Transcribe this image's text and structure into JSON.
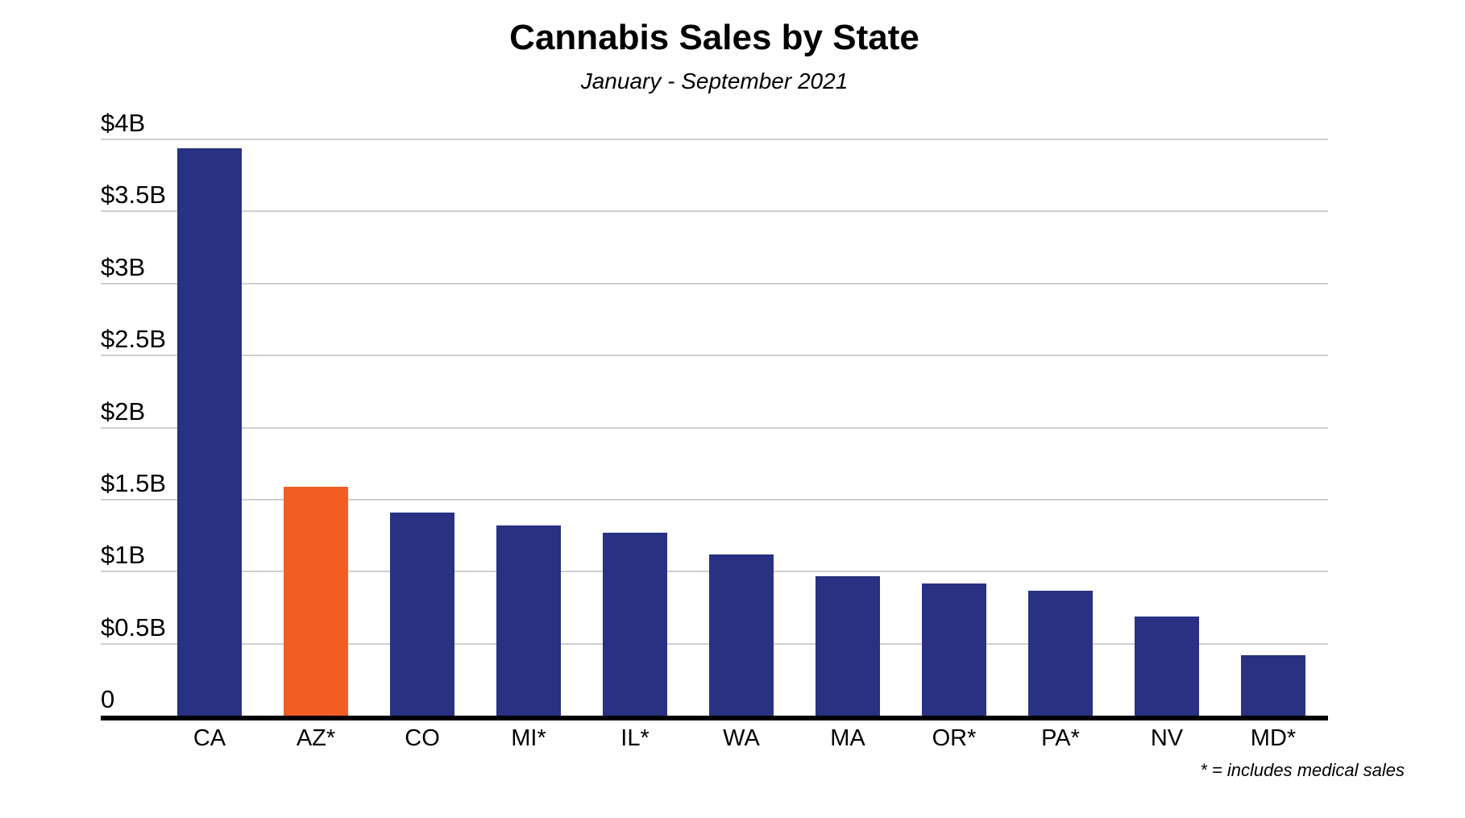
{
  "header": {
    "title": "Cannabis Sales by State",
    "subtitle": "January - September 2021"
  },
  "footnote": "* = includes medical sales",
  "colors": {
    "bar_default": "#283182",
    "bar_highlight": "#F15E24",
    "gridline": "#CFCFCF",
    "axis_line": "#000000",
    "text": "#000000",
    "background": "#FFFFFF"
  },
  "chart_data": {
    "type": "bar",
    "title": "Cannabis Sales by State",
    "subtitle": "January - September 2021",
    "unit": "USD billions",
    "categories": [
      "CA",
      "AZ*",
      "CO",
      "MI*",
      "IL*",
      "WA",
      "MA",
      "OR*",
      "PA*",
      "NV",
      "MD*"
    ],
    "values": [
      3.94,
      1.59,
      1.41,
      1.32,
      1.27,
      1.12,
      0.97,
      0.92,
      0.87,
      0.69,
      0.42
    ],
    "highlighted_category": "AZ*",
    "y_axis": {
      "min": 0,
      "max": 4,
      "ticks": [
        {
          "value": 4,
          "label": "$4B"
        },
        {
          "value": 3.5,
          "label": "$3.5B"
        },
        {
          "value": 3,
          "label": "$3B"
        },
        {
          "value": 2.5,
          "label": "$2.5B"
        },
        {
          "value": 2,
          "label": "$2B"
        },
        {
          "value": 1.5,
          "label": "$1.5B"
        },
        {
          "value": 1,
          "label": "$1B"
        },
        {
          "value": 0.5,
          "label": "$0.5B"
        },
        {
          "value": 0,
          "label": "0"
        }
      ]
    },
    "grid": true,
    "legend": false,
    "annotation": "* = includes medical sales"
  }
}
